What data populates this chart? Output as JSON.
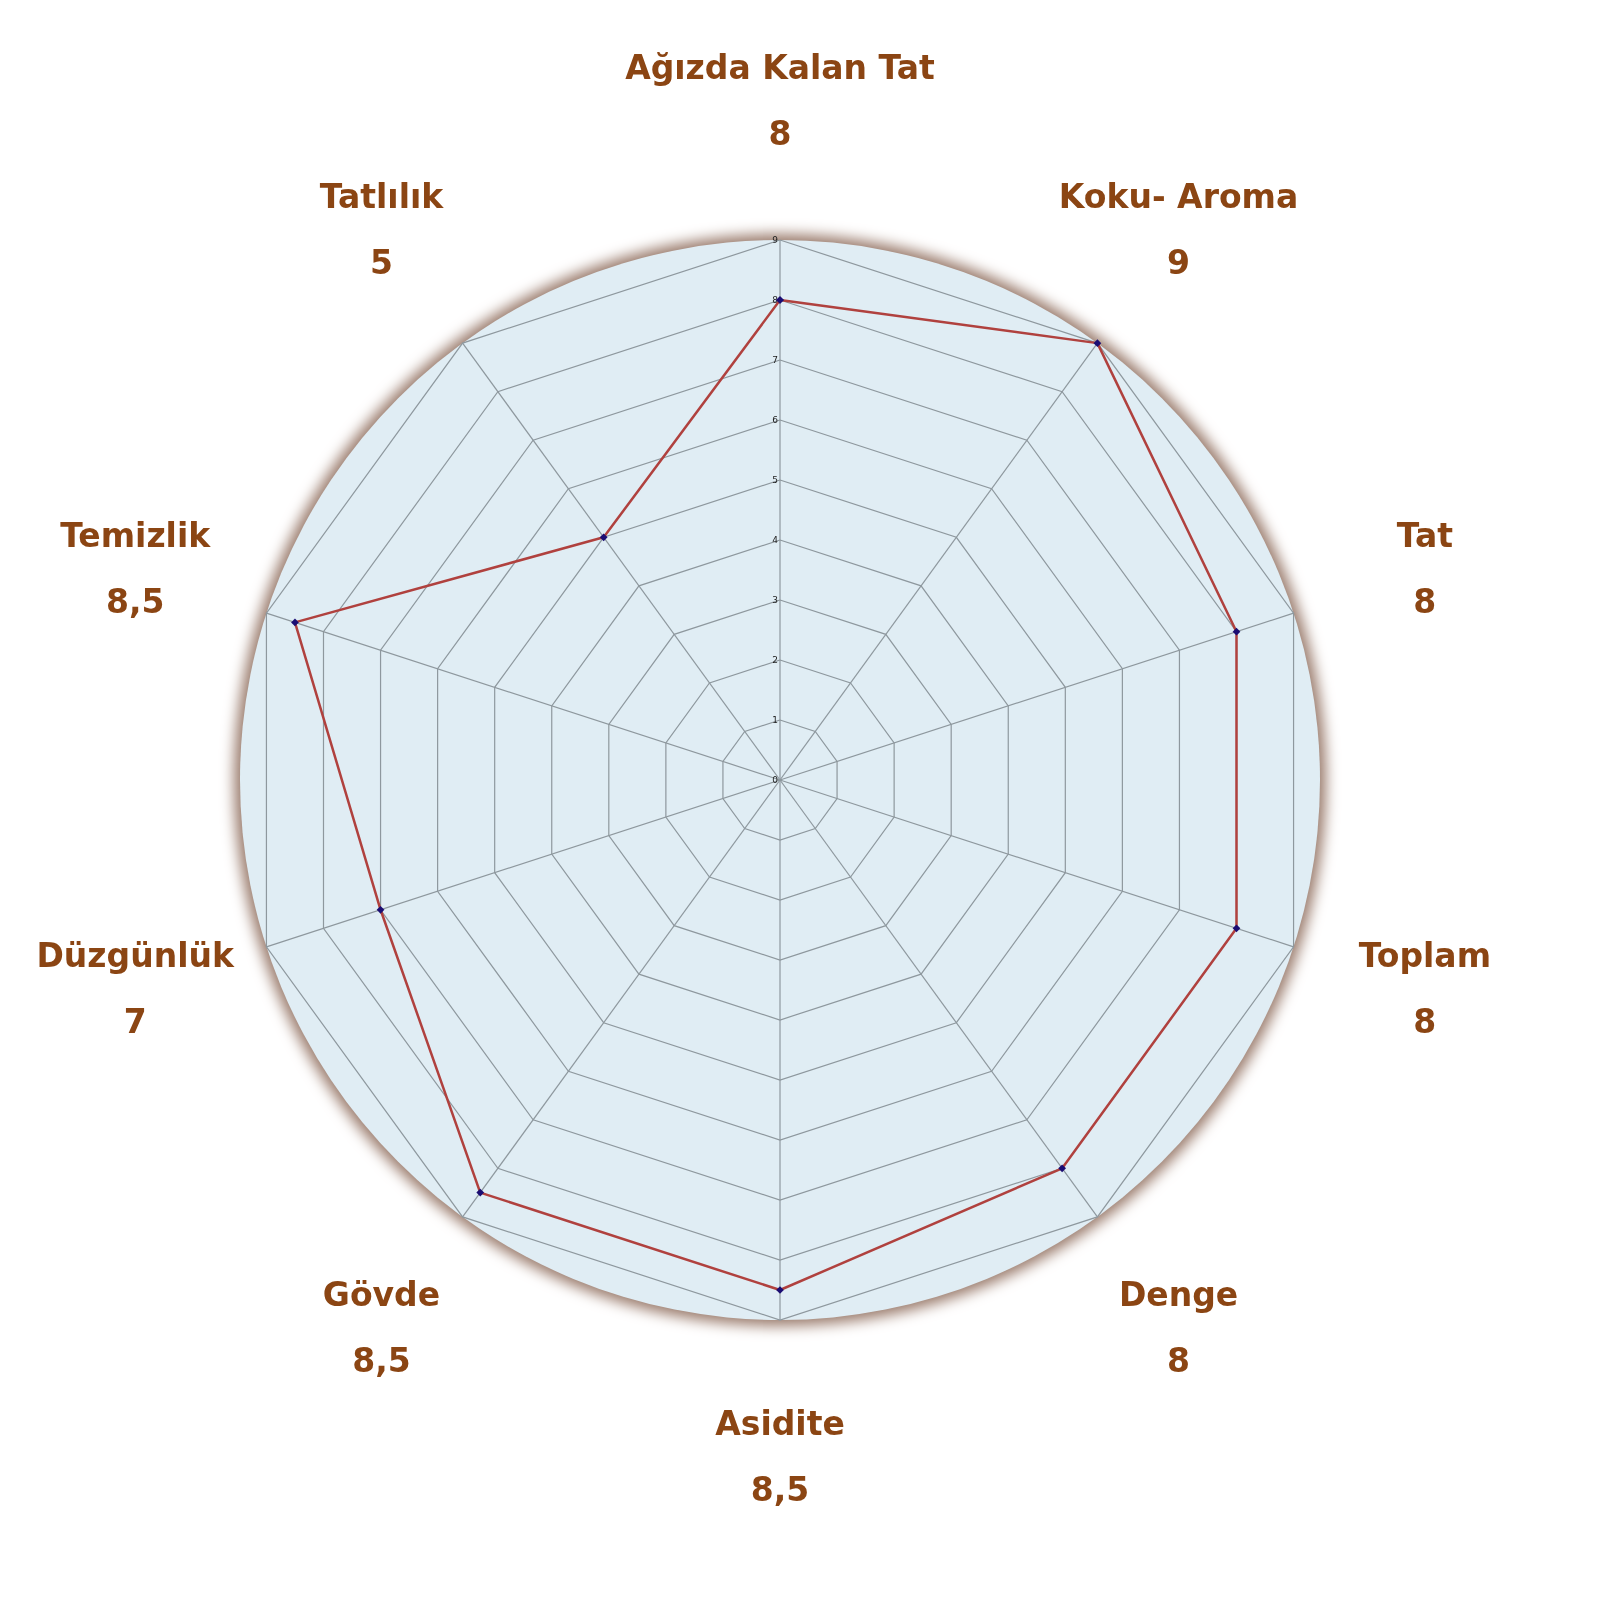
{
  "chart_data": {
    "type": "radar",
    "categories": [
      "Ağızda Kalan Tat",
      "Koku- Aroma",
      "Tat",
      "Toplam",
      "Denge",
      "Asidite",
      "Gövde",
      "Düzgünlük",
      "Temizlik",
      "Tatlılık"
    ],
    "series": [
      {
        "color": "#b0413e",
        "values": [
          8,
          9,
          8,
          8,
          8,
          8.5,
          8.5,
          7,
          8.5,
          5
        ]
      }
    ],
    "value_labels": [
      "8",
      "9",
      "8",
      "8",
      "8",
      "8,5",
      "8,5",
      "7",
      "8,5",
      "5"
    ],
    "ylim": [
      0,
      9
    ],
    "yticks": [
      0,
      1,
      2,
      3,
      4,
      5,
      6,
      7,
      8,
      9
    ],
    "grid": true,
    "marker": "diamond"
  }
}
